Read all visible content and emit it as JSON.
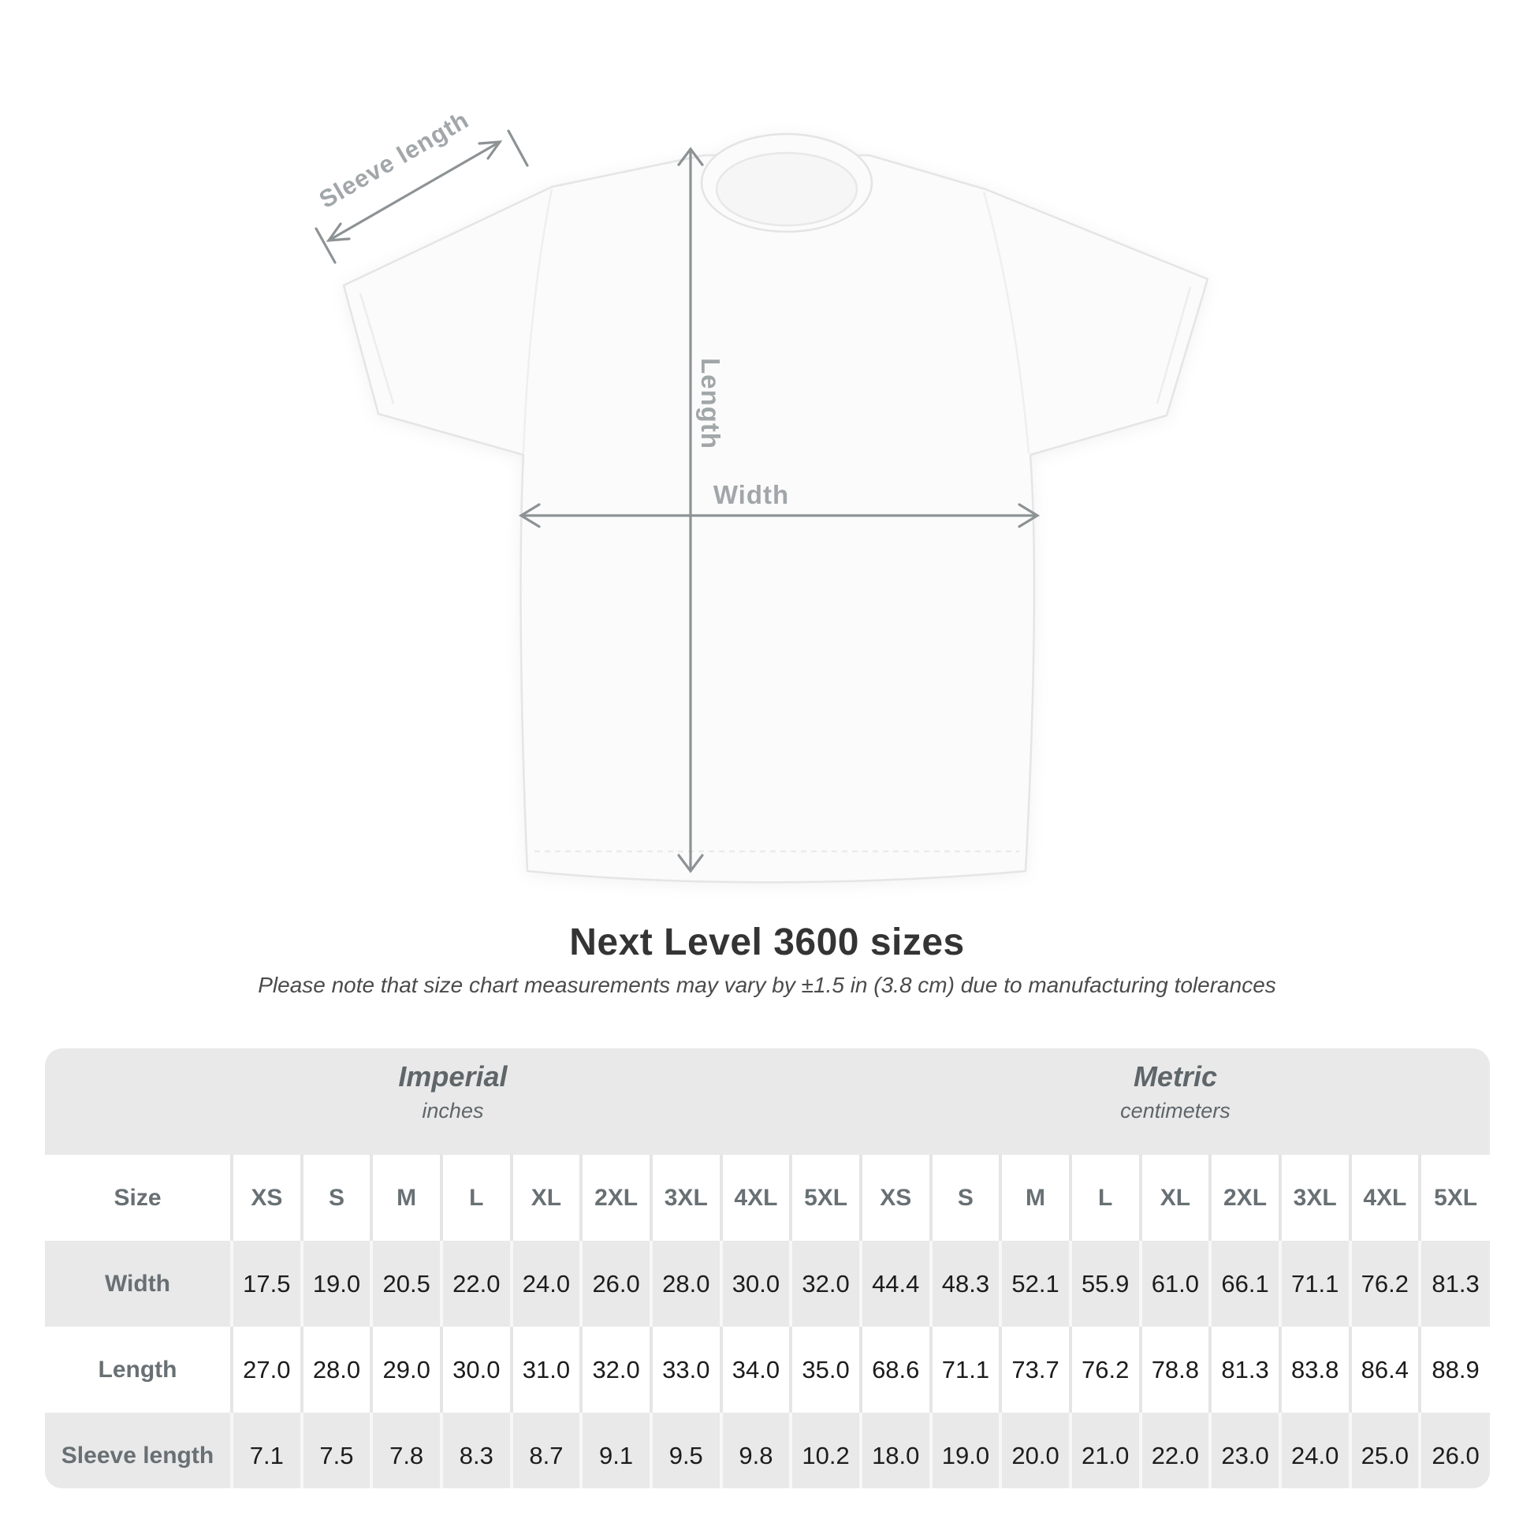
{
  "diagram": {
    "sleeve_label": "Sleeve length",
    "length_label": "Length",
    "width_label": "Width"
  },
  "title": "Next Level 3600 sizes",
  "subtitle": "Please note that size chart measurements may vary by ±1.5 in (3.8 cm) due to manufacturing tolerances",
  "table": {
    "sections": [
      {
        "name": "Imperial",
        "unit": "inches"
      },
      {
        "name": "Metric",
        "unit": "centimeters"
      }
    ],
    "size_label": "Size",
    "sizes": [
      "XS",
      "S",
      "M",
      "L",
      "XL",
      "2XL",
      "3XL",
      "4XL",
      "5XL"
    ],
    "rows": [
      {
        "label": "Width",
        "imperial": [
          "17.5",
          "19.0",
          "20.5",
          "22.0",
          "24.0",
          "26.0",
          "28.0",
          "30.0",
          "32.0"
        ],
        "metric": [
          "44.4",
          "48.3",
          "52.1",
          "55.9",
          "61.0",
          "66.1",
          "71.1",
          "76.2",
          "81.3"
        ]
      },
      {
        "label": "Length",
        "imperial": [
          "27.0",
          "28.0",
          "29.0",
          "30.0",
          "31.0",
          "32.0",
          "33.0",
          "34.0",
          "35.0"
        ],
        "metric": [
          "68.6",
          "71.1",
          "73.7",
          "76.2",
          "78.8",
          "81.3",
          "83.8",
          "86.4",
          "88.9"
        ]
      },
      {
        "label": "Sleeve length",
        "imperial": [
          "7.1",
          "7.5",
          "7.8",
          "8.3",
          "8.7",
          "9.1",
          "9.5",
          "9.8",
          "10.2"
        ],
        "metric": [
          "18.0",
          "19.0",
          "20.0",
          "21.0",
          "22.0",
          "23.0",
          "24.0",
          "25.0",
          "26.0"
        ]
      }
    ]
  },
  "chart_data": {
    "type": "table",
    "title": "Next Level 3600 sizes",
    "columns": [
      "XS",
      "S",
      "M",
      "L",
      "XL",
      "2XL",
      "3XL",
      "4XL",
      "5XL"
    ],
    "series": [
      {
        "name": "Width (in)",
        "values": [
          17.5,
          19.0,
          20.5,
          22.0,
          24.0,
          26.0,
          28.0,
          30.0,
          32.0
        ]
      },
      {
        "name": "Length (in)",
        "values": [
          27.0,
          28.0,
          29.0,
          30.0,
          31.0,
          32.0,
          33.0,
          34.0,
          35.0
        ]
      },
      {
        "name": "Sleeve length (in)",
        "values": [
          7.1,
          7.5,
          7.8,
          8.3,
          8.7,
          9.1,
          9.5,
          9.8,
          10.2
        ]
      },
      {
        "name": "Width (cm)",
        "values": [
          44.4,
          48.3,
          52.1,
          55.9,
          61.0,
          66.1,
          71.1,
          76.2,
          81.3
        ]
      },
      {
        "name": "Length (cm)",
        "values": [
          68.6,
          71.1,
          73.7,
          76.2,
          78.8,
          81.3,
          83.8,
          86.4,
          88.9
        ]
      },
      {
        "name": "Sleeve length (cm)",
        "values": [
          18.0,
          19.0,
          20.0,
          21.0,
          22.0,
          23.0,
          24.0,
          25.0,
          26.0
        ]
      }
    ]
  },
  "colors": {
    "card_bg": "#e9e9e9",
    "value_text": "#1c1c1c",
    "label_text": "#687074",
    "unit_header_text": "#5f666a",
    "dimension_line": "#8d9295",
    "dimension_label": "#a1a6a9",
    "title_text": "#343434"
  }
}
